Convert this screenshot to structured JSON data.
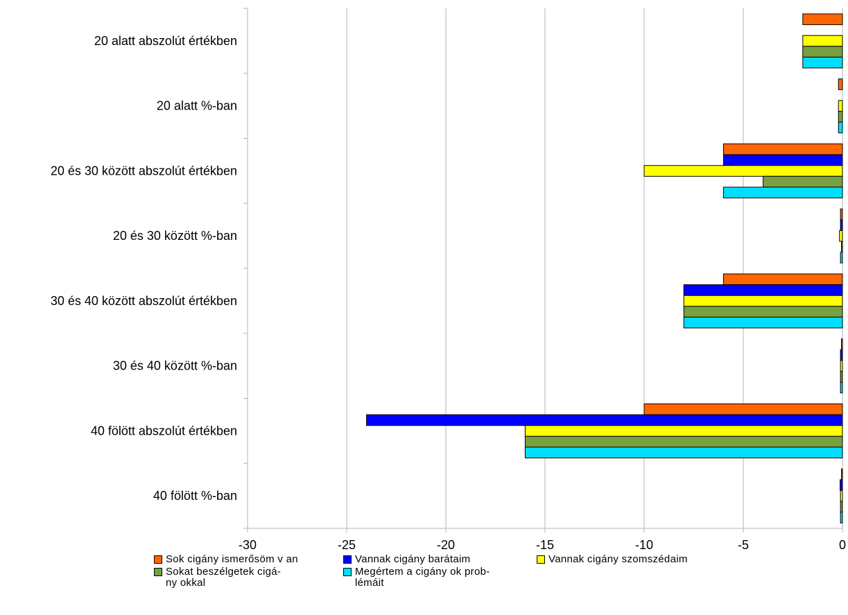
{
  "chart_data": {
    "type": "bar",
    "orientation": "horizontal",
    "categories": [
      "20 alatt abszolút értékben",
      "20 alatt %-ban",
      "20 és 30 között abszolút értékben",
      "20 és 30 között %-ban",
      "30 és 40 között abszolút értékben",
      "30 és 40 között %-ban",
      "40 fölött abszolút értékben",
      "40 fölött %-ban"
    ],
    "series": [
      {
        "name": "Sok cigány ismerősöm v an",
        "color": "#ff6600",
        "values": [
          -2,
          -0.2,
          -6,
          -0.1,
          -6,
          -0.05,
          -10,
          -0.05
        ]
      },
      {
        "name": "Vannak cigány barátaim",
        "color": "#0000ff",
        "values": [
          0,
          0,
          -6,
          -0.1,
          -8,
          -0.1,
          -24,
          -0.12
        ]
      },
      {
        "name": "Vannak cigány szomszédaim",
        "color": "#ffff00",
        "values": [
          -2,
          -0.2,
          -10,
          -0.15,
          -8,
          -0.1,
          -16,
          -0.1
        ]
      },
      {
        "name": "Sokat beszélgetek cigá-ny okkal",
        "color": "#77a040",
        "values": [
          -2,
          -0.2,
          -4,
          -0.05,
          -8,
          -0.1,
          -16,
          -0.1
        ]
      },
      {
        "name": "Megértem a cigány ok prob-lémáit",
        "color": "#00ddff",
        "values": [
          -2,
          -0.2,
          -6,
          -0.1,
          -8,
          -0.1,
          -16,
          -0.1
        ]
      }
    ],
    "xlim": [
      -30,
      0
    ],
    "xticks": [
      "-30",
      "-25",
      "-20",
      "-15",
      "-10",
      "-5",
      "0"
    ],
    "xtick_values": [
      -30,
      -25,
      -20,
      -15,
      -10,
      -5,
      0
    ],
    "grid": "vertical",
    "legend_position": "bottom"
  },
  "legend": {
    "items": [
      {
        "line1": "Sok cigány ismerősöm v an",
        "line2": ""
      },
      {
        "line1": "Vannak cigány barátaim",
        "line2": ""
      },
      {
        "line1": "Vannak cigány szomszédaim",
        "line2": ""
      },
      {
        "line1": "Sokat beszélgetek cigá-",
        "line2": "ny okkal"
      },
      {
        "line1": "Megértem a cigány ok prob-",
        "line2": "lémáit"
      }
    ]
  }
}
